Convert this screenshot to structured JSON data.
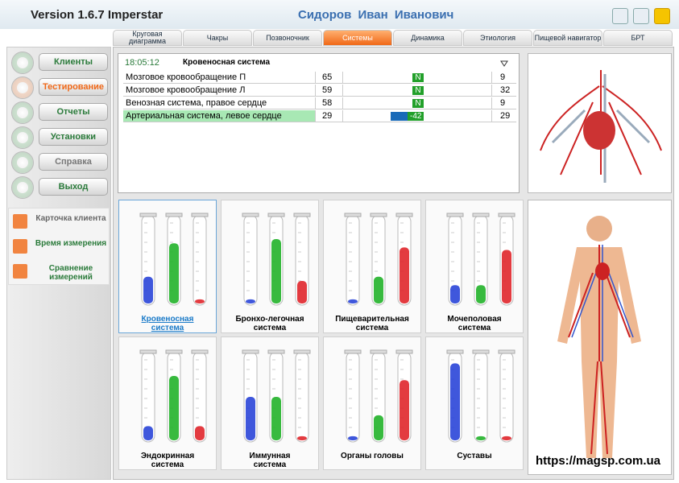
{
  "header": {
    "version": "Version 1.6.7 Imperstar",
    "user": "Сидоров Иван Иванович"
  },
  "tabs": {
    "items": [
      "Круговая диаграмма",
      "Чакры",
      "Позвоночник",
      "Системы",
      "Динамика",
      "Этиология",
      "Пищевой навигатор",
      "БРТ"
    ],
    "active": 3
  },
  "menu": {
    "items": [
      "Клиенты",
      "Тестирование",
      "Отчеты",
      "Установки",
      "Справка",
      "Выход"
    ],
    "active": 1
  },
  "submenu": {
    "items": [
      "Карточка клиента",
      "Время измерения",
      "Сравнение измерений"
    ]
  },
  "table": {
    "time": "18:05:12",
    "title": "Кровеносная система",
    "rows": [
      [
        "Мозговое кровообращение П",
        65,
        "N",
        9
      ],
      [
        "Мозговое кровообращение Л",
        59,
        "N",
        32
      ],
      [
        "Венозная система, правое сердце",
        58,
        "N",
        9
      ],
      [
        "Артериальная система, левое сердце",
        29,
        -42,
        29
      ]
    ],
    "highlight": 3
  },
  "cards": {
    "tube_colors": [
      "#2a45d8",
      "#22b32a",
      "#e0262b"
    ],
    "selected": 0,
    "items": [
      {
        "name": "Кровеносная система",
        "levels": [
          30,
          70,
          3
        ]
      },
      {
        "name": "Бронхо-легочная система",
        "levels": [
          3,
          75,
          25
        ]
      },
      {
        "name": "Пищеварительная система",
        "levels": [
          3,
          30,
          65
        ]
      },
      {
        "name": "Мочеполовая система",
        "levels": [
          20,
          20,
          62
        ]
      },
      {
        "name": "Эндокринная система",
        "levels": [
          15,
          75,
          15
        ]
      },
      {
        "name": "Иммунная система",
        "levels": [
          50,
          50,
          3
        ]
      },
      {
        "name": "Органы головы",
        "levels": [
          3,
          28,
          70
        ]
      },
      {
        "name": "Суставы",
        "levels": [
          90,
          3,
          3
        ]
      }
    ]
  },
  "watermark": "https://magsp.com.ua"
}
